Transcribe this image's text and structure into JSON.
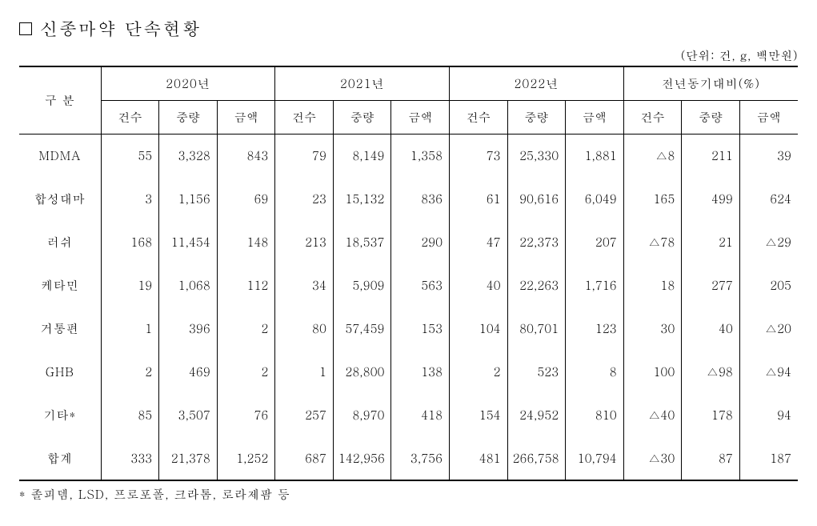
{
  "title": "신종마약 단속현황",
  "unit_text": "(단위: 건, g, 백만원)",
  "row_header": "구  분",
  "groups": [
    "2020년",
    "2021년",
    "2022년",
    "전년동기대비(%)"
  ],
  "sub_headers": [
    "건수",
    "중량",
    "금액"
  ],
  "rows": [
    {
      "label": "MDMA",
      "2020": [
        "55",
        "3,328",
        "843"
      ],
      "2021": [
        "79",
        "8,149",
        "1,358"
      ],
      "2022": [
        "73",
        "25,330",
        "1,881"
      ],
      "yoy": [
        "△8",
        "211",
        "39"
      ]
    },
    {
      "label": "합성대마",
      "2020": [
        "3",
        "1,156",
        "69"
      ],
      "2021": [
        "23",
        "15,132",
        "836"
      ],
      "2022": [
        "61",
        "90,616",
        "6,049"
      ],
      "yoy": [
        "165",
        "499",
        "624"
      ]
    },
    {
      "label": "러쉬",
      "2020": [
        "168",
        "11,454",
        "148"
      ],
      "2021": [
        "213",
        "18,537",
        "290"
      ],
      "2022": [
        "47",
        "22,373",
        "207"
      ],
      "yoy": [
        "△78",
        "21",
        "△29"
      ]
    },
    {
      "label": "케타민",
      "2020": [
        "19",
        "1,068",
        "112"
      ],
      "2021": [
        "34",
        "5,909",
        "563"
      ],
      "2022": [
        "40",
        "22,263",
        "1,716"
      ],
      "yoy": [
        "18",
        "277",
        "205"
      ]
    },
    {
      "label": "거통편",
      "2020": [
        "1",
        "396",
        "2"
      ],
      "2021": [
        "80",
        "57,459",
        "153"
      ],
      "2022": [
        "104",
        "80,701",
        "123"
      ],
      "yoy": [
        "30",
        "40",
        "△20"
      ]
    },
    {
      "label": "GHB",
      "2020": [
        "2",
        "469",
        "2"
      ],
      "2021": [
        "1",
        "28,800",
        "138"
      ],
      "2022": [
        "2",
        "523",
        "8"
      ],
      "yoy": [
        "100",
        "△98",
        "△94"
      ]
    },
    {
      "label": "기타*",
      "2020": [
        "85",
        "3,507",
        "76"
      ],
      "2021": [
        "257",
        "8,970",
        "418"
      ],
      "2022": [
        "154",
        "24,952",
        "810"
      ],
      "yoy": [
        "△40",
        "178",
        "94"
      ]
    },
    {
      "label": "합계",
      "2020": [
        "333",
        "21,378",
        "1,252"
      ],
      "2021": [
        "687",
        "142,956",
        "3,756"
      ],
      "2022": [
        "481",
        "266,758",
        "10,794"
      ],
      "yoy": [
        "△30",
        "87",
        "187"
      ]
    }
  ],
  "footnote": "* 졸피뎀, LSD, 프로포폴, 크라톰, 로라제팜 등",
  "colors": {
    "text": "#000000",
    "background": "#ffffff",
    "border": "#000000"
  }
}
